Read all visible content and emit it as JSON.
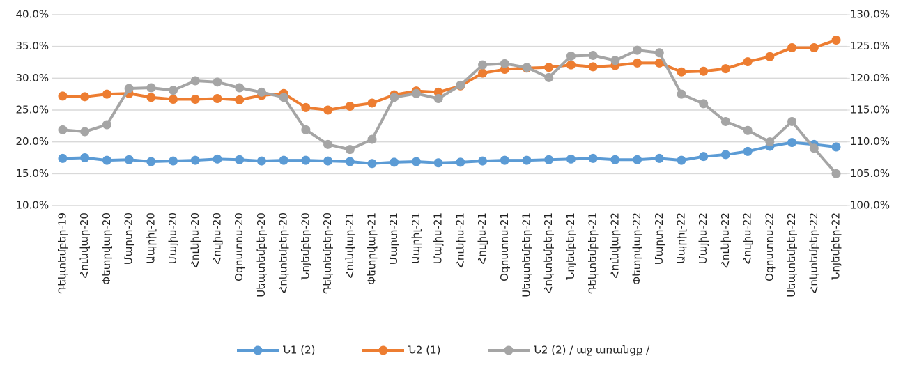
{
  "chart_data": {
    "type": "line",
    "categories": [
      "Դեկտեմբեր-19",
      "Հունվար-20",
      "Փետրվար-20",
      "Մարտ-20",
      "Ապրիլ-20",
      "Մայիս-20",
      "Հունիս-20",
      "Հուլիս-20",
      "Օգոստոս-20",
      "Սեպտեմբեր-20",
      "Հոկտեմբեր-20",
      "Նոյեմբեր-20",
      "Դեկտեմբեր-20",
      "Հունվար-21",
      "Փետրվար-21",
      "Մարտ-21",
      "Ապրիլ-21",
      "Մայիս-21",
      "Հունիս-21",
      "Հուլիս-21",
      "Օգոստոս-21",
      "Սեպտեմբեր-21",
      "Հոկտեմբեր-21",
      "Նոյեմբեր-21",
      "Դեկտեմբեր-21",
      "Հունվար-22",
      "Փետրվար-22",
      "Մարտ-22",
      "Ապրիլ-22",
      "Մայիս-22",
      "Հունիս-22",
      "Հուլիս-22",
      "Օգոստոս-22",
      "Սեպտեմբեր-22",
      "Հոկտեմբեր-22",
      "Նոյեմբեր-22"
    ],
    "series": [
      {
        "name": "Ն1 (2)",
        "color": "#5b9bd5",
        "values": [
          17.4,
          17.5,
          17.1,
          17.2,
          16.9,
          17.0,
          17.1,
          17.3,
          17.2,
          17.0,
          17.1,
          17.1,
          17.0,
          16.9,
          16.6,
          16.8,
          16.9,
          16.7,
          16.8,
          17.0,
          17.1,
          17.1,
          17.2,
          17.3,
          17.4,
          17.2,
          17.2,
          17.4,
          17.1,
          17.7,
          18.0,
          18.5,
          19.3,
          19.9,
          19.6,
          19.2
        ]
      },
      {
        "name": "Ն2 (1)",
        "color": "#ed7d31",
        "values": [
          27.2,
          27.1,
          27.5,
          27.6,
          27.0,
          26.7,
          26.7,
          26.8,
          26.6,
          27.3,
          27.6,
          25.4,
          25.0,
          25.6,
          26.1,
          27.4,
          28.0,
          27.8,
          28.8,
          30.8,
          31.4,
          31.6,
          31.7,
          32.1,
          31.8,
          32.0,
          32.4,
          32.4,
          31.0,
          31.1,
          31.5,
          32.6,
          33.4,
          34.8,
          34.8,
          36.0
        ]
      },
      {
        "name": "Ն2 (2) / աջ առանցք /",
        "color": "#a5a5a5",
        "axis": "y2",
        "values": [
          111.9,
          111.6,
          112.7,
          118.4,
          118.5,
          118.1,
          119.6,
          119.4,
          118.5,
          117.8,
          117.0,
          111.9,
          109.6,
          108.8,
          110.4,
          117.0,
          117.6,
          116.8,
          118.9,
          122.1,
          122.3,
          121.7,
          120.1,
          123.5,
          123.6,
          122.8,
          124.4,
          124.0,
          117.5,
          116.0,
          113.2,
          111.8,
          110.0,
          113.2,
          109.0,
          105.0
        ]
      }
    ],
    "ylim": [
      10,
      40
    ],
    "yticks": [
      {
        "value": 10,
        "label": "10.0%"
      },
      {
        "value": 15,
        "label": "15.0%"
      },
      {
        "value": 20,
        "label": "20.0%"
      },
      {
        "value": 25,
        "label": "25.0%"
      },
      {
        "value": 30,
        "label": "30.0%"
      },
      {
        "value": 35,
        "label": "35.0%"
      },
      {
        "value": 40,
        "label": "40.0%"
      }
    ],
    "y2lim": [
      100,
      130
    ],
    "y2ticks": [
      {
        "value": 100,
        "label": "100.0%"
      },
      {
        "value": 105,
        "label": "105.0%"
      },
      {
        "value": 110,
        "label": "110.0%"
      },
      {
        "value": 115,
        "label": "115.0%"
      },
      {
        "value": 120,
        "label": "120.0%"
      },
      {
        "value": 125,
        "label": "125.0%"
      },
      {
        "value": 130,
        "label": "130.0%"
      }
    ],
    "grid": true,
    "legend": "bottom"
  }
}
